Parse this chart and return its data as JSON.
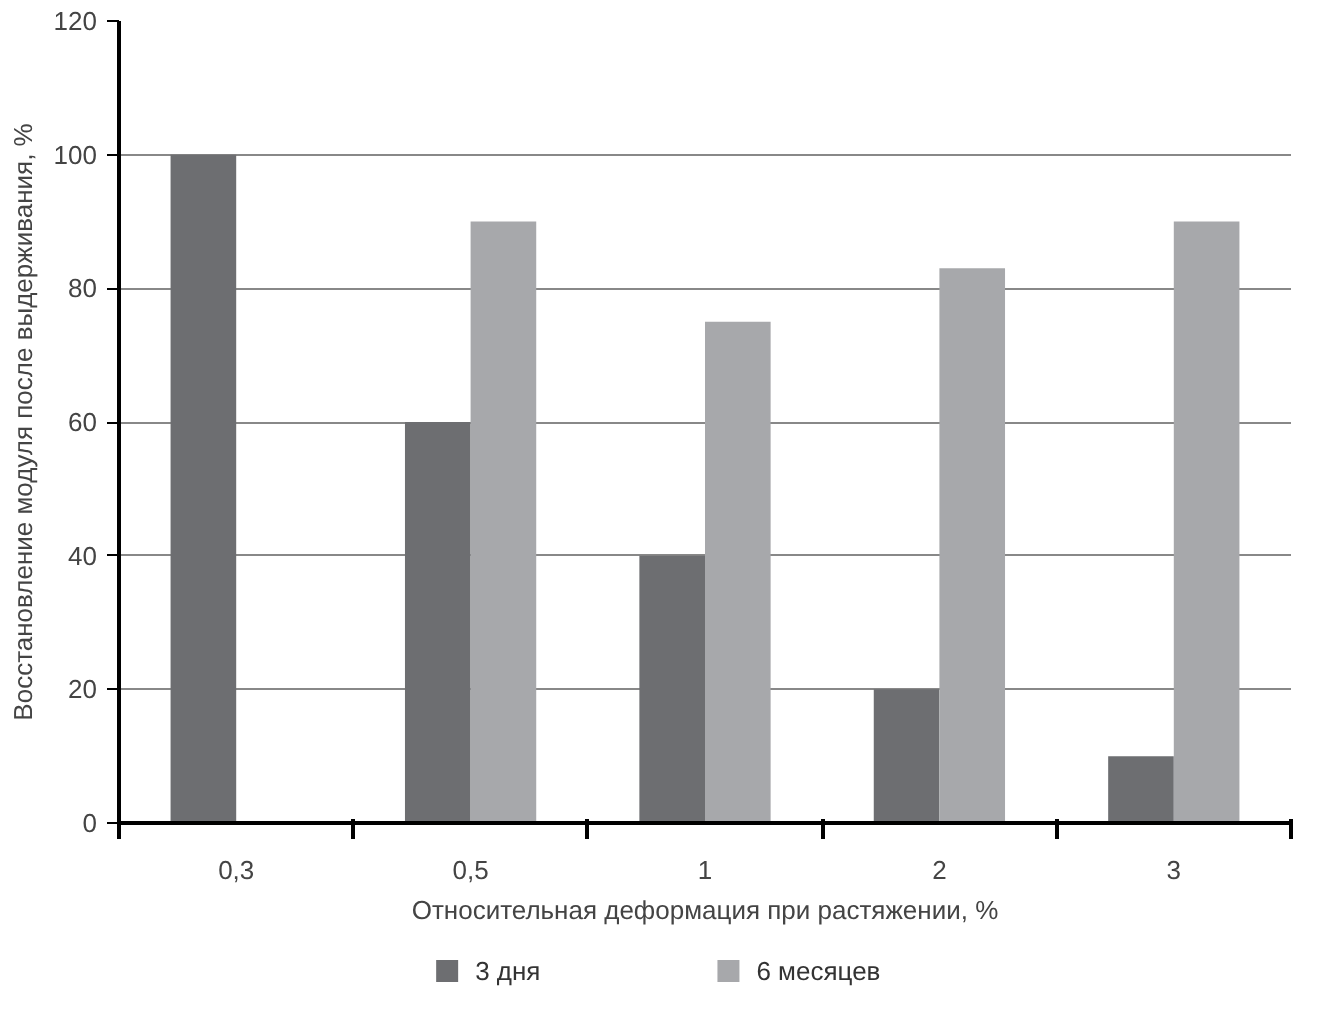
{
  "chart_data": {
    "type": "bar",
    "xlabel": "Относительная деформация при растяжении, %",
    "ylabel": "Восстановление модуля после выдерживания, %",
    "categories": [
      "0,3",
      "0,5",
      "1",
      "2",
      "3"
    ],
    "series": [
      {
        "name": "3 дня",
        "color": "#6d6e71",
        "values": [
          100,
          60,
          40,
          20,
          10
        ]
      },
      {
        "name": "6 месяцев",
        "color": "#a7a8ab",
        "values": [
          null,
          90,
          75,
          83,
          90
        ]
      }
    ],
    "ylim": [
      0,
      120
    ],
    "yticks": [
      0,
      20,
      40,
      60,
      80,
      100,
      120
    ],
    "grid": "y",
    "legend": "bottom"
  }
}
